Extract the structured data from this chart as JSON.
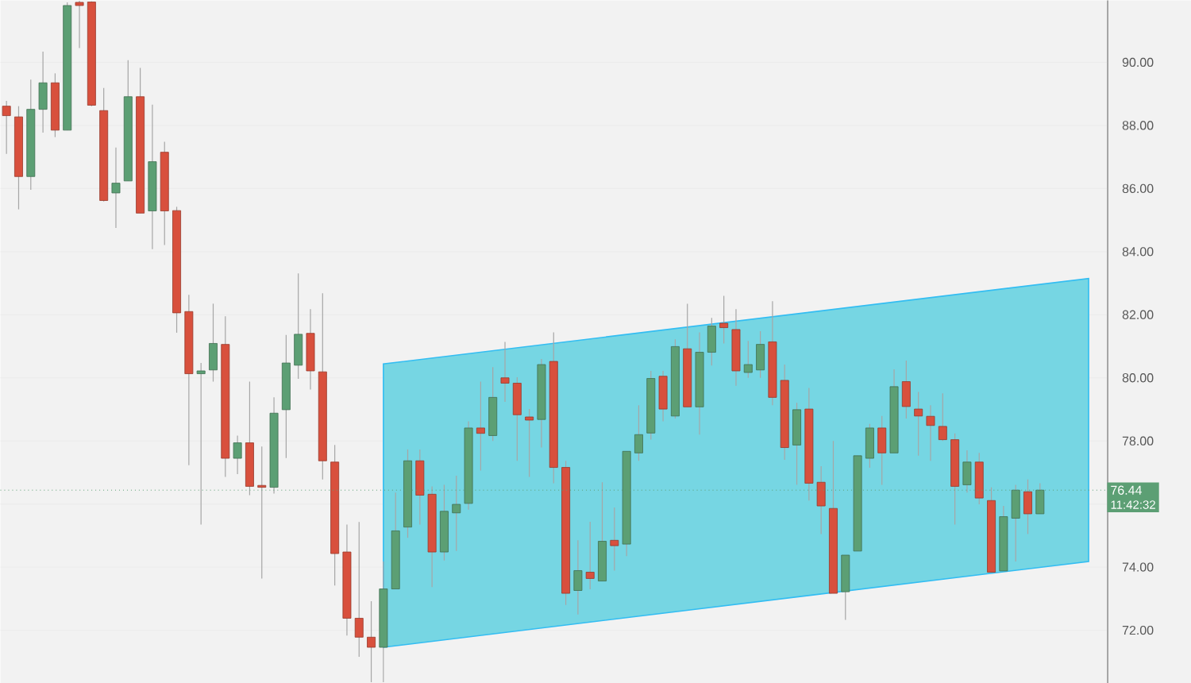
{
  "chart_data": {
    "type": "candlestick",
    "categories": [
      null,
      null,
      null,
      null,
      null,
      null,
      null,
      null,
      null,
      null,
      null,
      null,
      null,
      null,
      null,
      null,
      null,
      null,
      null,
      null,
      null,
      null,
      null,
      null,
      null,
      null,
      null,
      null,
      null,
      null,
      null,
      null,
      null,
      null,
      null,
      null,
      null,
      null,
      null,
      null,
      null,
      null,
      null,
      null,
      null,
      null,
      null,
      null,
      null,
      null,
      null,
      null,
      null,
      null,
      null,
      null,
      null,
      null,
      null,
      null,
      null,
      null,
      null,
      null,
      null,
      null,
      null,
      null,
      null,
      null,
      null,
      null,
      null,
      null,
      null,
      null,
      null,
      null,
      null,
      null,
      null,
      null,
      null,
      null,
      null,
      null,
      null,
      null,
      null,
      null,
      null
    ],
    "ohlc": [
      [
        88.61,
        88.78,
        87.1,
        88.31
      ],
      [
        88.27,
        88.61,
        85.34,
        86.38
      ],
      [
        86.38,
        89.45,
        85.96,
        88.51
      ],
      [
        88.51,
        90.34,
        87.77,
        89.35
      ],
      [
        89.35,
        89.65,
        87.63,
        87.85
      ],
      [
        87.85,
        91.9,
        87.85,
        91.8
      ],
      [
        91.9,
        91.95,
        90.45,
        91.8
      ],
      [
        91.91,
        91.93,
        88.61,
        88.64
      ],
      [
        88.47,
        89.19,
        85.59,
        85.62
      ],
      [
        85.86,
        87.3,
        84.75,
        86.17
      ],
      [
        86.24,
        90.07,
        86.24,
        88.91
      ],
      [
        88.91,
        89.82,
        85.22,
        85.22
      ],
      [
        85.29,
        88.66,
        84.08,
        86.85
      ],
      [
        87.15,
        87.48,
        84.21,
        85.29
      ],
      [
        85.3,
        85.42,
        81.43,
        82.06
      ],
      [
        82.1,
        82.63,
        77.23,
        80.13
      ],
      [
        80.13,
        80.47,
        75.35,
        80.22
      ],
      [
        80.25,
        82.35,
        79.88,
        81.09
      ],
      [
        81.06,
        81.95,
        76.86,
        77.45
      ],
      [
        77.45,
        78.17,
        76.95,
        77.94
      ],
      [
        77.94,
        79.88,
        76.28,
        76.56
      ],
      [
        76.56,
        77.82,
        73.64,
        76.53
      ],
      [
        76.53,
        79.38,
        76.33,
        78.88
      ],
      [
        78.99,
        81.36,
        77.46,
        80.47
      ],
      [
        80.4,
        83.31,
        79.97,
        81.38
      ],
      [
        81.41,
        82.18,
        79.63,
        80.22
      ],
      [
        80.19,
        82.68,
        76.78,
        77.37
      ],
      [
        77.33,
        77.87,
        73.42,
        74.43
      ],
      [
        74.48,
        75.35,
        71.83,
        72.38
      ],
      [
        72.38,
        75.43,
        71.16,
        71.78
      ],
      [
        71.78,
        72.92,
        70.35,
        71.46
      ],
      [
        71.46,
        74.18,
        70.35,
        73.31
      ],
      [
        73.31,
        76.36,
        73.31,
        75.15
      ],
      [
        75.27,
        77.73,
        74.93,
        77.37
      ],
      [
        77.37,
        77.73,
        75.35,
        76.28
      ],
      [
        76.31,
        76.56,
        73.37,
        74.48
      ],
      [
        74.48,
        76.61,
        74.21,
        75.77
      ],
      [
        75.72,
        76.9,
        74.51,
        75.99
      ],
      [
        76.02,
        78.62,
        75.82,
        78.41
      ],
      [
        78.41,
        79.88,
        77.06,
        78.24
      ],
      [
        78.17,
        80.34,
        78.0,
        79.38
      ],
      [
        80.0,
        81.14,
        79.24,
        79.83
      ],
      [
        79.83,
        80.02,
        77.37,
        78.83
      ],
      [
        78.76,
        79.01,
        76.86,
        78.66
      ],
      [
        78.68,
        80.6,
        77.79,
        80.42
      ],
      [
        80.52,
        81.44,
        76.66,
        77.16
      ],
      [
        77.16,
        77.37,
        72.8,
        73.17
      ],
      [
        73.26,
        74.85,
        72.5,
        73.89
      ],
      [
        73.84,
        75.44,
        73.3,
        73.64
      ],
      [
        73.56,
        76.69,
        73.56,
        74.82
      ],
      [
        74.85,
        75.89,
        73.89,
        74.68
      ],
      [
        74.73,
        77.67,
        74.35,
        77.67
      ],
      [
        77.62,
        79.13,
        77.37,
        78.2
      ],
      [
        78.25,
        80.22,
        78.04,
        79.98
      ],
      [
        80.05,
        80.22,
        78.62,
        79.01
      ],
      [
        78.79,
        81.22,
        78.71,
        80.99
      ],
      [
        80.92,
        82.35,
        79.08,
        79.08
      ],
      [
        79.08,
        81.44,
        78.2,
        80.81
      ],
      [
        80.81,
        81.9,
        80.39,
        81.64
      ],
      [
        81.73,
        82.6,
        81.09,
        81.59
      ],
      [
        81.53,
        82.18,
        79.75,
        80.22
      ],
      [
        80.17,
        81.17,
        80.0,
        80.42
      ],
      [
        80.25,
        81.48,
        80.0,
        81.06
      ],
      [
        81.14,
        82.43,
        79.13,
        79.38
      ],
      [
        79.92,
        80.42,
        77.4,
        77.79
      ],
      [
        77.87,
        79.21,
        76.61,
        78.99
      ],
      [
        79.01,
        79.68,
        76.11,
        76.66
      ],
      [
        76.69,
        77.2,
        75.05,
        75.94
      ],
      [
        75.86,
        78.0,
        73.17,
        73.17
      ],
      [
        73.22,
        74.38,
        72.33,
        74.38
      ],
      [
        74.51,
        77.53,
        74.51,
        77.53
      ],
      [
        77.45,
        78.54,
        77.15,
        78.41
      ],
      [
        78.41,
        78.79,
        76.61,
        77.62
      ],
      [
        77.62,
        80.27,
        77.62,
        79.72
      ],
      [
        79.88,
        80.55,
        78.71,
        79.09
      ],
      [
        79.01,
        79.55,
        77.53,
        78.79
      ],
      [
        78.78,
        79.13,
        77.37,
        78.49
      ],
      [
        78.46,
        79.51,
        78.0,
        78.04
      ],
      [
        78.04,
        78.24,
        75.35,
        76.56
      ],
      [
        76.61,
        77.7,
        76.36,
        77.33
      ],
      [
        77.33,
        77.62,
        75.99,
        76.19
      ],
      [
        76.11,
        76.53,
        73.84,
        73.84
      ],
      [
        73.88,
        75.94,
        73.88,
        75.6
      ],
      [
        75.55,
        76.61,
        74.18,
        76.44
      ],
      [
        76.39,
        76.78,
        75.05,
        75.69
      ],
      [
        75.69,
        76.66,
        75.69,
        76.44
      ],
      null,
      null,
      null,
      null,
      null
    ],
    "colors": [
      "#d8503d",
      "#d8503d",
      "#5c9f74",
      "#5c9f74",
      "#d8503d",
      "#5c9f74",
      "#d8503d",
      "#d8503d",
      "#d8503d",
      "#5c9f74",
      "#5c9f74",
      "#d8503d",
      "#5c9f74",
      "#d8503d",
      "#d8503d",
      "#d8503d",
      "#5c9f74",
      "#5c9f74",
      "#d8503d",
      "#5c9f74",
      "#d8503d",
      "#d8503d",
      "#5c9f74",
      "#5c9f74",
      "#5c9f74",
      "#d8503d",
      "#d8503d",
      "#d8503d",
      "#d8503d",
      "#d8503d",
      "#d8503d",
      "#5c9f74",
      "#5c9f74",
      "#5c9f74",
      "#d8503d",
      "#d8503d",
      "#5c9f74",
      "#5c9f74",
      "#5c9f74",
      "#d8503d",
      "#5c9f74",
      "#d8503d",
      "#d8503d",
      "#d8503d",
      "#5c9f74",
      "#d8503d",
      "#d8503d",
      "#5c9f74",
      "#d8503d",
      "#5c9f74",
      "#d8503d",
      "#5c9f74",
      "#5c9f74",
      "#5c9f74",
      "#d8503d",
      "#5c9f74",
      "#d8503d",
      "#5c9f74",
      "#5c9f74",
      "#d8503d",
      "#d8503d",
      "#5c9f74",
      "#5c9f74",
      "#d8503d",
      "#d8503d",
      "#5c9f74",
      "#d8503d",
      "#d8503d",
      "#d8503d",
      "#5c9f74",
      "#5c9f74",
      "#5c9f74",
      "#d8503d",
      "#5c9f74",
      "#d8503d",
      "#d8503d",
      "#d8503d",
      "#d8503d",
      "#d8503d",
      "#5c9f74",
      "#d8503d",
      "#d8503d",
      "#5c9f74",
      "#5c9f74",
      "#d8503d",
      "#5c9f74",
      null,
      null,
      null,
      null,
      null
    ],
    "series": [
      {
        "type": "line",
        "values": [
          null,
          null,
          null,
          null,
          null,
          null,
          null,
          null,
          null,
          null,
          null,
          null,
          null,
          null,
          null,
          null,
          null,
          null,
          null,
          null,
          null,
          null,
          null,
          null,
          null,
          null,
          null,
          null,
          null,
          null,
          null,
          null,
          null,
          null,
          null,
          null,
          null,
          null,
          null,
          null,
          null,
          null,
          null,
          null,
          null,
          null,
          null,
          null,
          null,
          null,
          null,
          null,
          null,
          null,
          null,
          null,
          null,
          null,
          null,
          null,
          null,
          null,
          null,
          null,
          null,
          null,
          null,
          null,
          null,
          null,
          null,
          null,
          null,
          null,
          null,
          null,
          null,
          null,
          null,
          null,
          null,
          null,
          null,
          null,
          null,
          null,
          null,
          null,
          null,
          null,
          null
        ],
        "upper": [
          null,
          null,
          null,
          null,
          null,
          null,
          null,
          null,
          null,
          null,
          null,
          null,
          null,
          null,
          null,
          null,
          null,
          null,
          null,
          null,
          null,
          null,
          null,
          null,
          null,
          null,
          null,
          null,
          null,
          null,
          null,
          80.44,
          null,
          null,
          null,
          null,
          null,
          null,
          null,
          null,
          null,
          null,
          null,
          null,
          null,
          null,
          null,
          null,
          null,
          null,
          null,
          null,
          null,
          null,
          null,
          null,
          null,
          null,
          null,
          null,
          null,
          null,
          null,
          null,
          null,
          null,
          null,
          null,
          null,
          null,
          null,
          null,
          null,
          null,
          null,
          null,
          null,
          null,
          null,
          null,
          null,
          null,
          null,
          null,
          null,
          null,
          null,
          null,
          null,
          83.15,
          null
        ],
        "lower": [
          null,
          null,
          null,
          null,
          null,
          null,
          null,
          null,
          null,
          null,
          null,
          null,
          null,
          null,
          null,
          null,
          null,
          null,
          null,
          null,
          null,
          null,
          null,
          null,
          null,
          null,
          null,
          null,
          null,
          null,
          null,
          71.46,
          null,
          null,
          null,
          null,
          null,
          null,
          null,
          null,
          null,
          null,
          null,
          null,
          null,
          null,
          null,
          null,
          null,
          null,
          null,
          null,
          null,
          null,
          null,
          null,
          null,
          null,
          null,
          null,
          null,
          null,
          null,
          null,
          null,
          null,
          null,
          null,
          null,
          null,
          null,
          null,
          null,
          null,
          null,
          null,
          null,
          null,
          null,
          null,
          null,
          null,
          null,
          null,
          null,
          null,
          null,
          null,
          null,
          74.18,
          null
        ],
        "color": "#76d6e3"
      }
    ],
    "ylim": [
      70.32,
      91.96
    ],
    "yticks": [
      {
        "value": 72,
        "label": "72.00"
      },
      {
        "value": 74,
        "label": "74.00"
      },
      {
        "value": 76,
        "label": null
      },
      {
        "value": 78,
        "label": "78.00"
      },
      {
        "value": 80,
        "label": "80.00"
      },
      {
        "value": 82,
        "label": "82.00"
      },
      {
        "value": 84,
        "label": "84.00"
      },
      {
        "value": 86,
        "label": "86.00"
      },
      {
        "value": 88,
        "label": "88.00"
      },
      {
        "value": 90,
        "label": "90.00"
      }
    ],
    "tick_labels": "y",
    "grid": "y",
    "ref_lines": [
      {
        "axis": "y",
        "value": 76.44,
        "label": "76.44",
        "color": "#5c9f74",
        "line_style": "dotted"
      }
    ],
    "annotations": [
      "11:42:32"
    ]
  }
}
